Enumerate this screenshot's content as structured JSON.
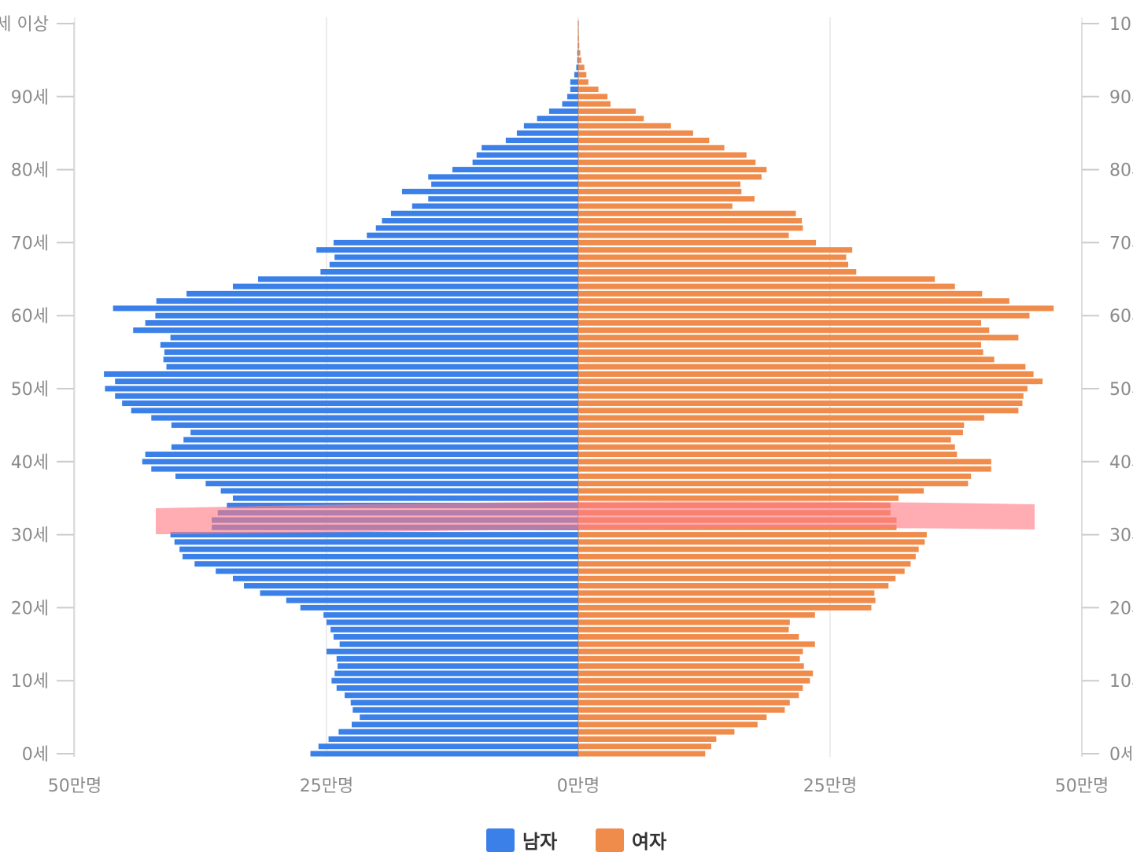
{
  "chart_data": {
    "type": "bar",
    "orientation": "horizontal-pyramid",
    "title": "",
    "colors": {
      "male": "#3a80e8",
      "female": "#ef8c4c",
      "highlight": "#ff7b85"
    },
    "legend": {
      "position": "bottom-center"
    },
    "series": [
      {
        "name": "남자",
        "ages": [
          0,
          1,
          2,
          3,
          4,
          5,
          6,
          7,
          8,
          9,
          10,
          11,
          12,
          13,
          14,
          15,
          16,
          17,
          18,
          19,
          20,
          21,
          22,
          23,
          24,
          25,
          26,
          27,
          28,
          29,
          30,
          31,
          32,
          33,
          34,
          35,
          36,
          37,
          38,
          39,
          40,
          41,
          42,
          43,
          44,
          45,
          46,
          47,
          48,
          49,
          50,
          51,
          52,
          53,
          54,
          55,
          56,
          57,
          58,
          59,
          60,
          61,
          62,
          63,
          64,
          65,
          66,
          67,
          68,
          69,
          70,
          71,
          72,
          73,
          74,
          75,
          76,
          77,
          78,
          79,
          80,
          81,
          82,
          83,
          84,
          85,
          86,
          87,
          88,
          89,
          90,
          91,
          92,
          93,
          94,
          95,
          96,
          97,
          98,
          99,
          100
        ],
        "values": [
          26.6,
          25.8,
          24.8,
          23.8,
          22.5,
          21.7,
          22.4,
          22.6,
          23.2,
          24.0,
          24.5,
          24.2,
          23.9,
          24.0,
          25.0,
          23.7,
          24.3,
          24.6,
          25.0,
          25.3,
          27.6,
          29.0,
          31.6,
          33.2,
          34.3,
          36.0,
          38.1,
          39.3,
          39.6,
          40.1,
          40.5,
          36.4,
          36.4,
          35.8,
          34.9,
          34.3,
          35.5,
          37.0,
          40.0,
          42.4,
          43.3,
          43.0,
          40.4,
          39.2,
          38.5,
          40.4,
          42.4,
          44.4,
          45.3,
          46.0,
          47.0,
          46.0,
          47.1,
          40.9,
          41.2,
          41.1,
          41.5,
          40.5,
          44.2,
          43.0,
          42.0,
          46.2,
          41.9,
          38.9,
          34.3,
          31.8,
          25.6,
          24.7,
          24.2,
          26.0,
          24.3,
          21.0,
          20.1,
          19.5,
          18.6,
          16.5,
          14.9,
          17.5,
          14.6,
          14.9,
          12.5,
          10.5,
          10.1,
          9.6,
          7.2,
          6.1,
          5.4,
          4.1,
          2.9,
          1.6,
          1.1,
          0.8,
          0.8,
          0.4,
          0.2,
          0.1,
          0.1,
          0.05,
          0.03,
          0.02,
          0.02
        ]
      },
      {
        "name": "여자",
        "ages": [
          0,
          1,
          2,
          3,
          4,
          5,
          6,
          7,
          8,
          9,
          10,
          11,
          12,
          13,
          14,
          15,
          16,
          17,
          18,
          19,
          20,
          21,
          22,
          23,
          24,
          25,
          26,
          27,
          28,
          29,
          30,
          31,
          32,
          33,
          34,
          35,
          36,
          37,
          38,
          39,
          40,
          41,
          42,
          43,
          44,
          45,
          46,
          47,
          48,
          49,
          50,
          51,
          52,
          53,
          54,
          55,
          56,
          57,
          58,
          59,
          60,
          61,
          62,
          63,
          64,
          65,
          66,
          67,
          68,
          69,
          70,
          71,
          72,
          73,
          74,
          75,
          76,
          77,
          78,
          79,
          80,
          81,
          82,
          83,
          84,
          85,
          86,
          87,
          88,
          89,
          90,
          91,
          92,
          93,
          94,
          95,
          96,
          97,
          98,
          99,
          100
        ],
        "values": [
          12.6,
          13.2,
          13.7,
          15.5,
          17.8,
          18.7,
          20.5,
          21.0,
          21.9,
          22.3,
          23.0,
          23.3,
          22.4,
          22.0,
          22.3,
          23.5,
          21.9,
          20.9,
          21.0,
          23.5,
          29.1,
          29.5,
          29.4,
          30.8,
          31.5,
          32.4,
          33.0,
          33.5,
          33.8,
          34.4,
          34.6,
          31.6,
          31.6,
          31.0,
          31.0,
          31.8,
          34.3,
          38.7,
          39.0,
          41.0,
          41.0,
          37.6,
          37.4,
          37.0,
          38.2,
          38.3,
          40.3,
          43.7,
          44.1,
          44.2,
          44.6,
          46.1,
          45.2,
          44.4,
          41.3,
          40.2,
          40.0,
          43.7,
          40.8,
          40.0,
          44.8,
          47.2,
          42.8,
          40.1,
          37.4,
          35.4,
          27.6,
          26.8,
          26.6,
          27.2,
          23.6,
          20.9,
          22.3,
          22.2,
          21.6,
          15.3,
          17.5,
          16.2,
          16.1,
          18.2,
          18.7,
          17.6,
          16.7,
          14.5,
          13.0,
          11.4,
          9.2,
          6.5,
          5.7,
          3.2,
          2.9,
          2.0,
          1.0,
          0.8,
          0.6,
          0.3,
          0.2,
          0.1,
          0.08,
          0.05,
          0.05
        ]
      }
    ],
    "y_axis": {
      "ticks": [
        0,
        10,
        20,
        30,
        40,
        50,
        60,
        70,
        80,
        90,
        100
      ],
      "left_labels": [
        "0세",
        "10세",
        "20세",
        "30세",
        "40세",
        "50세",
        "60세",
        "70세",
        "80세",
        "90세",
        "세 이상"
      ],
      "right_labels": [
        "0세",
        "10세",
        "20세",
        "30세",
        "40세",
        "50세",
        "60세",
        "70세",
        "80세",
        "90세",
        "10"
      ]
    },
    "x_axis": {
      "unit": "만명",
      "range": [
        -50,
        50
      ],
      "ticks": [
        -50,
        -25,
        0,
        25,
        50
      ],
      "tick_labels": [
        "50만명",
        "25만명",
        "0만명",
        "25만명",
        "50만명"
      ]
    },
    "grid": {
      "vertical": true,
      "horizontal": false
    },
    "annotation": {
      "type": "highlight-stroke",
      "age": 32
    }
  }
}
